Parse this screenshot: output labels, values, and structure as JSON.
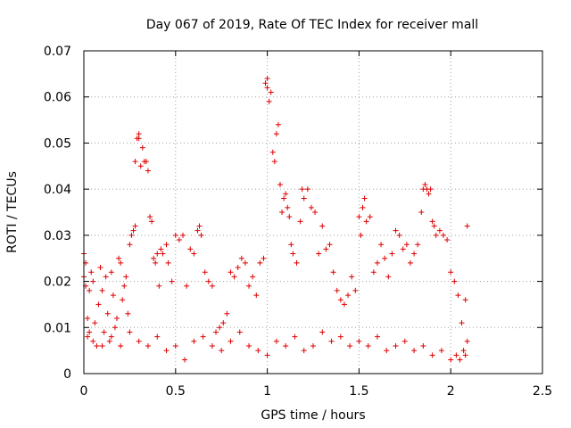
{
  "chart_data": {
    "type": "scatter",
    "title": "Day 067 of 2019, Rate Of TEC Index for receiver mall",
    "xlabel": "GPS time / hours",
    "ylabel": "ROTI / TECUs",
    "xlim": [
      0,
      2.5
    ],
    "ylim": [
      0,
      0.07
    ],
    "xticks": [
      0,
      0.5,
      1,
      1.5,
      2,
      2.5
    ],
    "xtick_labels": [
      "0",
      "0.5",
      "1",
      "1.5",
      "2",
      "2.5"
    ],
    "yticks": [
      0,
      0.01,
      0.02,
      0.03,
      0.04,
      0.05,
      0.06,
      0.07
    ],
    "ytick_labels": [
      "0",
      "0.01",
      "0.02",
      "0.03",
      "0.04",
      "0.05",
      "0.06",
      "0.07"
    ],
    "grid": true,
    "marker": "+",
    "color": "#e00000",
    "series": [
      {
        "name": "ROTI",
        "points": [
          [
            0.0,
            0.026
          ],
          [
            0.0,
            0.021
          ],
          [
            0.01,
            0.019
          ],
          [
            0.01,
            0.024
          ],
          [
            0.02,
            0.012
          ],
          [
            0.02,
            0.008
          ],
          [
            0.03,
            0.018
          ],
          [
            0.03,
            0.009
          ],
          [
            0.04,
            0.022
          ],
          [
            0.05,
            0.02
          ],
          [
            0.06,
            0.011
          ],
          [
            0.07,
            0.006
          ],
          [
            0.08,
            0.015
          ],
          [
            0.09,
            0.023
          ],
          [
            0.1,
            0.018
          ],
          [
            0.11,
            0.009
          ],
          [
            0.12,
            0.021
          ],
          [
            0.13,
            0.013
          ],
          [
            0.14,
            0.007
          ],
          [
            0.15,
            0.022
          ],
          [
            0.16,
            0.017
          ],
          [
            0.17,
            0.01
          ],
          [
            0.18,
            0.012
          ],
          [
            0.19,
            0.025
          ],
          [
            0.2,
            0.024
          ],
          [
            0.21,
            0.016
          ],
          [
            0.22,
            0.019
          ],
          [
            0.23,
            0.021
          ],
          [
            0.24,
            0.013
          ],
          [
            0.25,
            0.028
          ],
          [
            0.26,
            0.03
          ],
          [
            0.27,
            0.031
          ],
          [
            0.28,
            0.032
          ],
          [
            0.28,
            0.046
          ],
          [
            0.29,
            0.051
          ],
          [
            0.3,
            0.052
          ],
          [
            0.3,
            0.051
          ],
          [
            0.31,
            0.045
          ],
          [
            0.32,
            0.049
          ],
          [
            0.33,
            0.046
          ],
          [
            0.34,
            0.046
          ],
          [
            0.35,
            0.044
          ],
          [
            0.36,
            0.034
          ],
          [
            0.37,
            0.033
          ],
          [
            0.38,
            0.025
          ],
          [
            0.39,
            0.024
          ],
          [
            0.4,
            0.026
          ],
          [
            0.41,
            0.019
          ],
          [
            0.42,
            0.027
          ],
          [
            0.43,
            0.026
          ],
          [
            0.45,
            0.028
          ],
          [
            0.46,
            0.024
          ],
          [
            0.48,
            0.02
          ],
          [
            0.5,
            0.03
          ],
          [
            0.52,
            0.029
          ],
          [
            0.54,
            0.03
          ],
          [
            0.56,
            0.019
          ],
          [
            0.58,
            0.027
          ],
          [
            0.6,
            0.026
          ],
          [
            0.62,
            0.031
          ],
          [
            0.63,
            0.032
          ],
          [
            0.64,
            0.03
          ],
          [
            0.66,
            0.022
          ],
          [
            0.68,
            0.02
          ],
          [
            0.7,
            0.019
          ],
          [
            0.72,
            0.009
          ],
          [
            0.74,
            0.01
          ],
          [
            0.76,
            0.011
          ],
          [
            0.78,
            0.013
          ],
          [
            0.8,
            0.022
          ],
          [
            0.82,
            0.021
          ],
          [
            0.84,
            0.023
          ],
          [
            0.86,
            0.025
          ],
          [
            0.88,
            0.024
          ],
          [
            0.9,
            0.019
          ],
          [
            0.92,
            0.021
          ],
          [
            0.94,
            0.017
          ],
          [
            0.96,
            0.024
          ],
          [
            0.98,
            0.025
          ],
          [
            0.99,
            0.063
          ],
          [
            1.0,
            0.064
          ],
          [
            1.0,
            0.062
          ],
          [
            1.01,
            0.059
          ],
          [
            1.02,
            0.061
          ],
          [
            1.03,
            0.048
          ],
          [
            1.04,
            0.046
          ],
          [
            1.05,
            0.052
          ],
          [
            1.06,
            0.054
          ],
          [
            1.07,
            0.041
          ],
          [
            1.08,
            0.035
          ],
          [
            1.09,
            0.038
          ],
          [
            1.1,
            0.039
          ],
          [
            1.11,
            0.036
          ],
          [
            1.12,
            0.034
          ],
          [
            1.13,
            0.028
          ],
          [
            1.14,
            0.026
          ],
          [
            1.16,
            0.024
          ],
          [
            1.18,
            0.033
          ],
          [
            1.19,
            0.04
          ],
          [
            1.2,
            0.038
          ],
          [
            1.22,
            0.04
          ],
          [
            1.24,
            0.036
          ],
          [
            1.26,
            0.035
          ],
          [
            1.28,
            0.026
          ],
          [
            1.3,
            0.032
          ],
          [
            1.32,
            0.027
          ],
          [
            1.34,
            0.028
          ],
          [
            1.36,
            0.022
          ],
          [
            1.38,
            0.018
          ],
          [
            1.4,
            0.016
          ],
          [
            1.42,
            0.015
          ],
          [
            1.44,
            0.017
          ],
          [
            1.46,
            0.021
          ],
          [
            1.48,
            0.018
          ],
          [
            1.5,
            0.034
          ],
          [
            1.51,
            0.03
          ],
          [
            1.52,
            0.036
          ],
          [
            1.53,
            0.038
          ],
          [
            1.54,
            0.033
          ],
          [
            1.56,
            0.034
          ],
          [
            1.58,
            0.022
          ],
          [
            1.6,
            0.024
          ],
          [
            1.62,
            0.028
          ],
          [
            1.64,
            0.025
          ],
          [
            1.66,
            0.021
          ],
          [
            1.68,
            0.026
          ],
          [
            1.7,
            0.031
          ],
          [
            1.72,
            0.03
          ],
          [
            1.74,
            0.027
          ],
          [
            1.76,
            0.028
          ],
          [
            1.78,
            0.024
          ],
          [
            1.8,
            0.026
          ],
          [
            1.82,
            0.028
          ],
          [
            1.84,
            0.035
          ],
          [
            1.85,
            0.04
          ],
          [
            1.86,
            0.041
          ],
          [
            1.87,
            0.04
          ],
          [
            1.88,
            0.039
          ],
          [
            1.89,
            0.04
          ],
          [
            1.9,
            0.033
          ],
          [
            1.91,
            0.032
          ],
          [
            1.92,
            0.03
          ],
          [
            1.94,
            0.031
          ],
          [
            1.96,
            0.03
          ],
          [
            1.98,
            0.029
          ],
          [
            2.0,
            0.022
          ],
          [
            2.02,
            0.02
          ],
          [
            2.04,
            0.017
          ],
          [
            2.06,
            0.011
          ],
          [
            2.08,
            0.016
          ],
          [
            2.09,
            0.032
          ],
          [
            2.09,
            0.007
          ],
          [
            0.05,
            0.007
          ],
          [
            0.1,
            0.006
          ],
          [
            0.15,
            0.008
          ],
          [
            0.2,
            0.006
          ],
          [
            0.25,
            0.009
          ],
          [
            0.3,
            0.007
          ],
          [
            0.35,
            0.006
          ],
          [
            0.4,
            0.008
          ],
          [
            0.45,
            0.005
          ],
          [
            0.5,
            0.006
          ],
          [
            0.55,
            0.003
          ],
          [
            0.6,
            0.007
          ],
          [
            0.65,
            0.008
          ],
          [
            0.7,
            0.006
          ],
          [
            0.75,
            0.005
          ],
          [
            0.8,
            0.007
          ],
          [
            0.85,
            0.009
          ],
          [
            0.9,
            0.006
          ],
          [
            0.95,
            0.005
          ],
          [
            1.0,
            0.004
          ],
          [
            1.05,
            0.007
          ],
          [
            1.1,
            0.006
          ],
          [
            1.15,
            0.008
          ],
          [
            1.2,
            0.005
          ],
          [
            1.25,
            0.006
          ],
          [
            1.3,
            0.009
          ],
          [
            1.35,
            0.007
          ],
          [
            1.4,
            0.008
          ],
          [
            1.45,
            0.006
          ],
          [
            1.5,
            0.007
          ],
          [
            1.55,
            0.006
          ],
          [
            1.6,
            0.008
          ],
          [
            1.65,
            0.005
          ],
          [
            1.7,
            0.006
          ],
          [
            1.75,
            0.007
          ],
          [
            1.8,
            0.005
          ],
          [
            1.85,
            0.006
          ],
          [
            1.9,
            0.004
          ],
          [
            1.95,
            0.005
          ],
          [
            2.0,
            0.003
          ],
          [
            2.03,
            0.004
          ],
          [
            2.05,
            0.003
          ],
          [
            2.07,
            0.005
          ],
          [
            2.08,
            0.004
          ]
        ]
      }
    ]
  }
}
